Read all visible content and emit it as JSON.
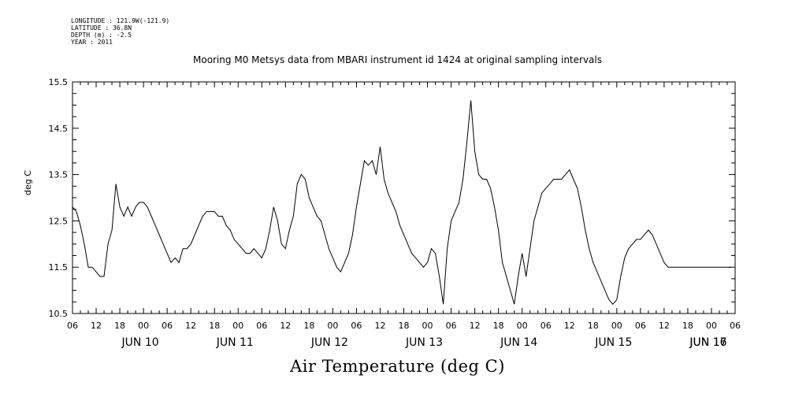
{
  "metadata": {
    "longitude": "LONGITUDE : 121.9W(-121.9)",
    "latitude": "LATITUDE : 36.8N",
    "depth": "DEPTH (m) : -2.5",
    "year": "YEAR : 2011"
  },
  "chart_data": {
    "type": "line",
    "title": "Mooring M0 Metsys data from MBARI instrument id 1424 at original sampling intervals",
    "ylabel": "deg C",
    "footer_label": "Air Temperature (deg C)",
    "ylim": [
      10.5,
      15.5
    ],
    "yticks": [
      "10.5",
      "11.5",
      "12.5",
      "13.5",
      "14.5",
      "15.5"
    ],
    "x_hour_labels": [
      "06",
      "12",
      "18",
      "00",
      "06",
      "12",
      "18",
      "00",
      "06",
      "12",
      "18",
      "00",
      "06",
      "12",
      "18",
      "00",
      "06",
      "12",
      "18",
      "00",
      "06",
      "12",
      "18",
      "00",
      "06",
      "12",
      "18",
      "00",
      "06"
    ],
    "x_day_labels": [
      "JUN 10",
      "JUN 11",
      "JUN 12",
      "JUN 13",
      "JUN 14",
      "JUN 15",
      "JUN 16",
      "JUN 17"
    ],
    "x_range_hours": [
      0,
      168
    ],
    "x_units": "hours after JUN 10 06:00",
    "grid": false,
    "series": [
      {
        "x": [
          0,
          1,
          2,
          3,
          4,
          5,
          6,
          7,
          8,
          9,
          10,
          11,
          12,
          13,
          14,
          15,
          16,
          17,
          18,
          19,
          20,
          21,
          22,
          23,
          24,
          25,
          26,
          27,
          28,
          29,
          30,
          31,
          32,
          33,
          34,
          35,
          36,
          37,
          38,
          39,
          40,
          41,
          42,
          43,
          44,
          45,
          46,
          47,
          48,
          49,
          50,
          51,
          52,
          53,
          54,
          55,
          56,
          57,
          58,
          59,
          60,
          61,
          62,
          63,
          64,
          65,
          66,
          67,
          68,
          69,
          70,
          71,
          72,
          73,
          74,
          75,
          76,
          77,
          78,
          79,
          80,
          81,
          82,
          83,
          84,
          85,
          86,
          87,
          88,
          89,
          90,
          91,
          92,
          93,
          94,
          95,
          96,
          97,
          98,
          99,
          100,
          101,
          102,
          103,
          104,
          105,
          106,
          107,
          108,
          109,
          110,
          111,
          112,
          113,
          114,
          115,
          116,
          117,
          118,
          119,
          120,
          121,
          122,
          123,
          124,
          125,
          126,
          127,
          128,
          129,
          130,
          131,
          132,
          133,
          134,
          135,
          136,
          137,
          138,
          139,
          140,
          141,
          142,
          143,
          144,
          145,
          146,
          147,
          148,
          149,
          150,
          151,
          152,
          153,
          154,
          155,
          156,
          157,
          158,
          159,
          160,
          161,
          162,
          163,
          164,
          165,
          166,
          167
        ],
        "values": [
          12.8,
          12.7,
          12.4,
          12.0,
          11.5,
          11.5,
          11.4,
          11.3,
          11.3,
          12.0,
          12.3,
          13.3,
          12.8,
          12.6,
          12.8,
          12.6,
          12.8,
          12.9,
          12.9,
          12.8,
          12.6,
          12.4,
          12.2,
          12.0,
          11.8,
          11.6,
          11.7,
          11.6,
          11.9,
          11.9,
          12.0,
          12.2,
          12.4,
          12.6,
          12.7,
          12.7,
          12.7,
          12.6,
          12.6,
          12.4,
          12.3,
          12.1,
          12.0,
          11.9,
          11.8,
          11.8,
          11.9,
          11.8,
          11.7,
          11.9,
          12.3,
          12.8,
          12.5,
          12.0,
          11.9,
          12.3,
          12.6,
          13.3,
          13.5,
          13.4,
          13.0,
          12.8,
          12.6,
          12.5,
          12.2,
          11.9,
          11.7,
          11.5,
          11.4,
          11.6,
          11.8,
          12.2,
          12.8,
          13.3,
          13.8,
          13.7,
          13.8,
          13.5,
          14.1,
          13.4,
          13.1,
          12.9,
          12.7,
          12.4,
          12.2,
          12.0,
          11.8,
          11.7,
          11.6,
          11.5,
          11.6,
          11.9,
          11.8,
          11.3,
          10.7,
          11.9,
          12.5,
          12.7,
          12.9,
          13.4,
          14.2,
          15.1,
          14.0,
          13.5,
          13.4,
          13.4,
          13.2,
          12.8,
          12.3,
          11.6,
          11.3,
          11.0,
          10.7,
          11.3,
          11.8,
          11.3,
          11.9,
          12.5,
          12.8,
          13.1,
          13.2,
          13.3,
          13.4,
          13.4,
          13.4,
          13.5,
          13.6,
          13.4,
          13.2,
          12.8,
          12.3,
          11.9,
          11.6,
          11.4,
          11.2,
          11.0,
          10.8,
          10.7,
          10.8,
          11.3,
          11.7,
          11.9,
          12.0,
          12.1,
          12.1,
          12.2,
          12.3,
          12.2,
          12.0,
          11.8,
          11.6,
          11.5,
          11.5,
          11.5,
          11.5,
          11.5,
          11.5,
          11.5,
          11.5,
          11.5,
          11.5,
          11.5,
          11.5,
          11.5,
          11.5,
          11.5,
          11.5,
          11.5
        ]
      }
    ]
  }
}
